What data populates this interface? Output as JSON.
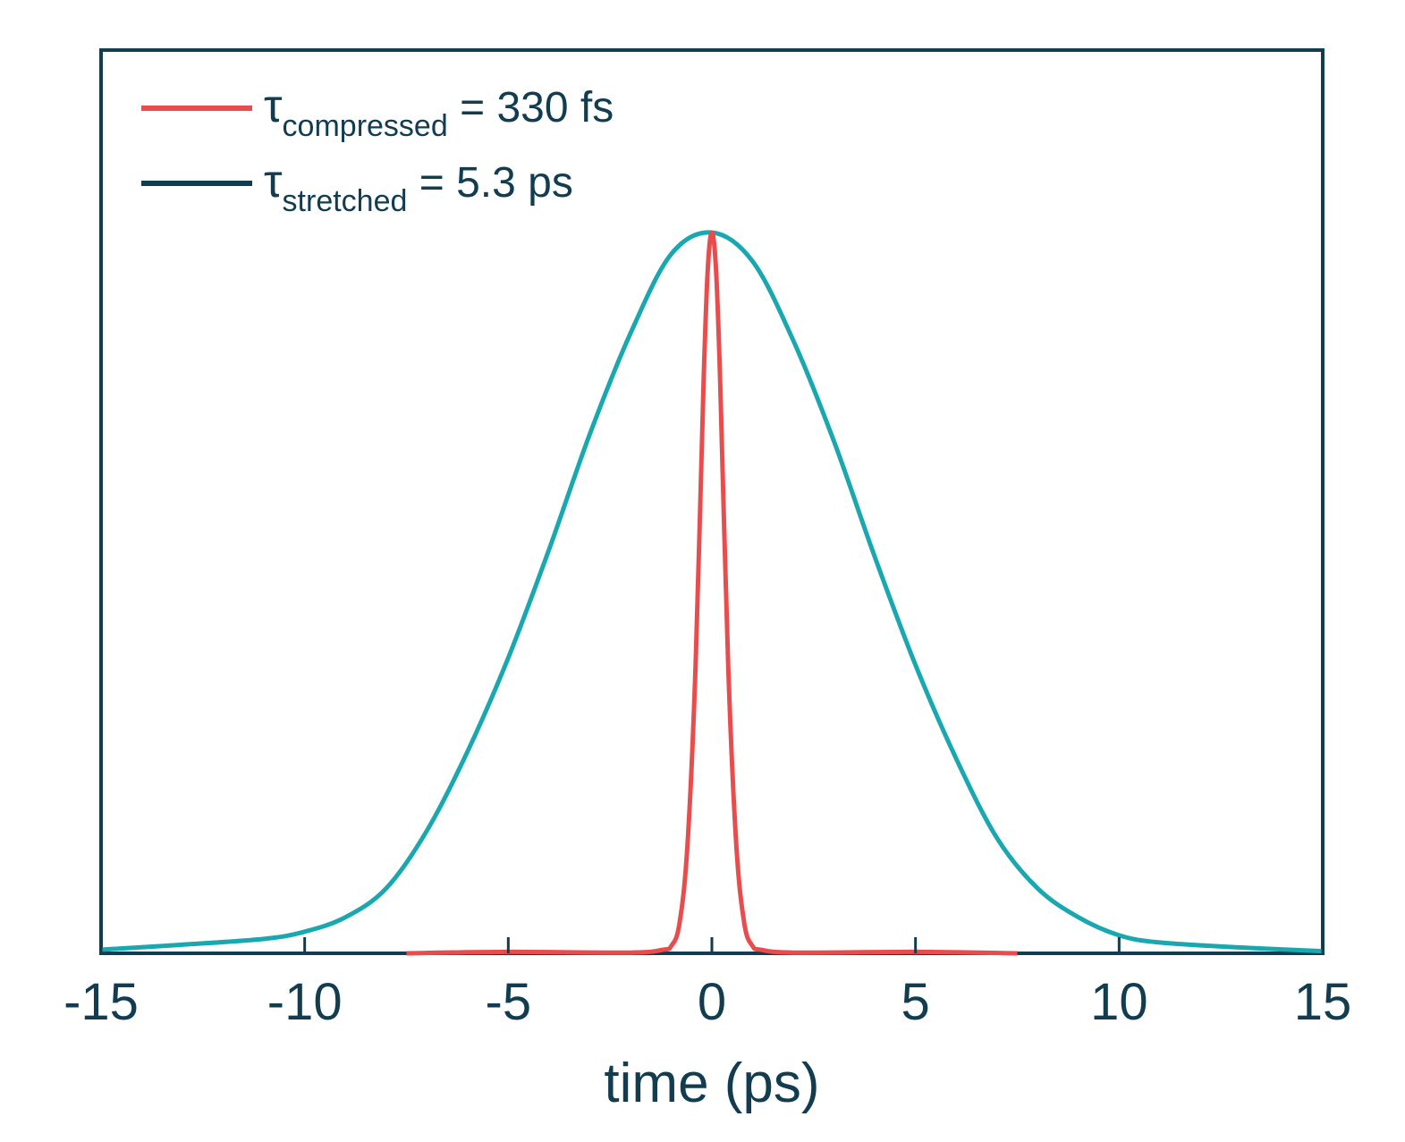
{
  "chart_data": {
    "type": "line",
    "title": "",
    "xlabel": "time (ps)",
    "ylabel": "",
    "xlim": [
      -15,
      15
    ],
    "ylim": [
      0,
      1.0
    ],
    "y_ticks_shown": false,
    "grid": false,
    "legend_position": "top-left",
    "x_ticks": [
      -15,
      -10,
      -5,
      0,
      5,
      10,
      15
    ],
    "x_tick_labels": [
      "-15",
      "-10",
      "-5",
      "0",
      "5",
      "10",
      "15"
    ],
    "legend": [
      {
        "symbol": "τ",
        "subscript": "compressed",
        "text": " = 330 fs",
        "color": "#e84c4c"
      },
      {
        "symbol": "τ",
        "subscript": "stretched",
        "text": " = 5.3 ps",
        "color": "#123c4f"
      }
    ],
    "series": [
      {
        "color": "#e84c4c",
        "x": [
          -7.5,
          -5,
          -2,
          -1.2,
          -1.0,
          -0.8,
          -0.6,
          -0.4,
          -0.2,
          -0.1,
          0,
          0.1,
          0.2,
          0.4,
          0.6,
          0.8,
          1.0,
          1.2,
          2,
          5,
          7.5
        ],
        "y": [
          0,
          0.002,
          0.001,
          0.005,
          0.01,
          0.04,
          0.15,
          0.4,
          0.8,
          0.95,
          1.0,
          0.95,
          0.8,
          0.4,
          0.15,
          0.04,
          0.01,
          0.005,
          0.001,
          0.002,
          0
        ]
      },
      {
        "color": "#1aa8b0",
        "x": [
          -15,
          -13,
          -11,
          -10,
          -9,
          -8,
          -7,
          -6,
          -5,
          -4,
          -3,
          -2,
          -1,
          0,
          1,
          2,
          3,
          4,
          5,
          6,
          7,
          8,
          9,
          10,
          11,
          13,
          15
        ],
        "y": [
          0.005,
          0.012,
          0.02,
          0.03,
          0.05,
          0.09,
          0.17,
          0.28,
          0.41,
          0.56,
          0.72,
          0.86,
          0.97,
          1.0,
          0.96,
          0.85,
          0.71,
          0.55,
          0.4,
          0.27,
          0.16,
          0.09,
          0.05,
          0.025,
          0.015,
          0.008,
          0.003
        ]
      }
    ]
  }
}
